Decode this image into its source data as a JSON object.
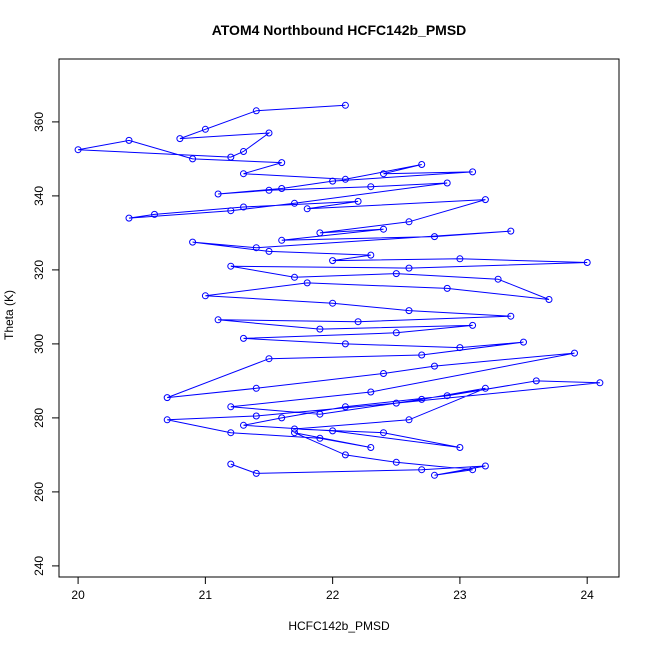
{
  "chart_data": {
    "type": "line",
    "title": "ATOM4 Northbound HCFC142b_PMSD",
    "xlabel": "HCFC142b_PMSD",
    "ylabel": "Theta (K)",
    "xlim": [
      19.85,
      24.25
    ],
    "ylim": [
      237,
      377
    ],
    "xticks": [
      20,
      21,
      22,
      23,
      24
    ],
    "yticks": [
      240,
      260,
      280,
      300,
      320,
      340,
      360
    ],
    "grid": false,
    "colors": {
      "series": "#0000ff"
    },
    "series": [
      {
        "x": [
          22.1,
          21.4,
          21.0,
          20.8,
          21.5,
          21.3,
          21.2,
          20.0,
          20.4,
          20.9,
          21.6,
          21.3,
          22.1,
          22.7,
          22.4,
          23.1,
          22.0,
          21.6,
          21.1,
          21.5,
          22.3,
          22.9,
          21.7,
          21.2,
          20.4,
          20.6,
          21.3,
          22.2,
          21.8,
          23.2,
          22.6,
          21.9,
          22.4,
          21.6,
          22.8,
          23.4,
          21.4,
          20.9,
          21.5,
          22.3,
          22.0,
          23.0,
          24.0,
          22.6,
          21.2,
          21.7,
          22.5,
          23.3,
          23.7,
          22.9,
          21.8,
          21.0,
          22.0,
          22.6,
          23.4,
          22.2,
          21.1,
          21.9,
          23.1,
          22.5,
          21.3,
          22.1,
          23.0,
          23.5,
          22.7,
          21.5,
          20.7,
          21.4,
          22.4,
          22.8,
          23.9,
          22.3,
          21.2,
          21.9,
          22.7,
          23.2,
          22.6,
          21.7,
          22.4,
          23.0,
          22.0,
          21.3,
          21.6,
          22.1,
          22.9,
          23.6,
          24.1,
          22.5,
          21.4,
          20.7,
          21.2,
          21.9,
          22.3,
          21.7,
          22.1,
          22.5,
          23.1,
          22.8,
          23.2,
          22.7,
          21.4,
          21.2
        ],
        "y": [
          364.5,
          363.0,
          358.0,
          355.5,
          357.0,
          352.0,
          350.5,
          352.5,
          355.0,
          350.0,
          349.0,
          346.0,
          344.5,
          348.5,
          346.0,
          346.5,
          344.0,
          342.0,
          340.5,
          341.5,
          342.5,
          343.5,
          338.0,
          336.0,
          334.0,
          335.0,
          337.0,
          338.5,
          336.5,
          339.0,
          333.0,
          330.0,
          331.0,
          328.0,
          329.0,
          330.5,
          326.0,
          327.5,
          325.0,
          324.0,
          322.5,
          323.0,
          322.0,
          320.5,
          321.0,
          318.0,
          319.0,
          317.5,
          312.0,
          315.0,
          316.5,
          313.0,
          311.0,
          309.0,
          307.5,
          306.0,
          306.5,
          304.0,
          305.0,
          303.0,
          301.5,
          300.0,
          299.0,
          300.5,
          297.0,
          296.0,
          285.5,
          288.0,
          292.0,
          294.0,
          297.5,
          287.0,
          283.0,
          281.0,
          285.0,
          288.0,
          279.5,
          277.0,
          276.0,
          272.0,
          276.5,
          278.0,
          280.0,
          283.0,
          286.0,
          290.0,
          289.5,
          284.0,
          280.5,
          279.5,
          276.0,
          274.5,
          272.0,
          276.0,
          270.0,
          268.0,
          266.0,
          264.5,
          267.0,
          266.0,
          265.0,
          267.5
        ]
      }
    ]
  }
}
